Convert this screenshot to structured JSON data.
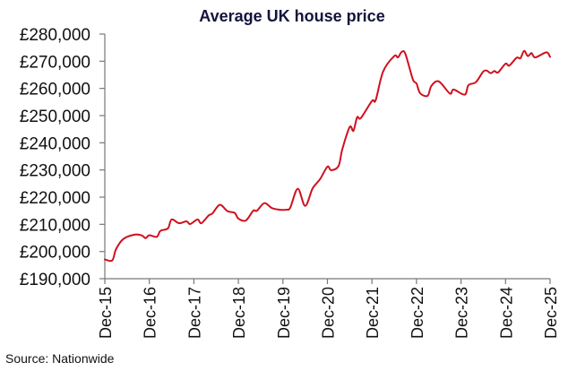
{
  "chart_data": {
    "type": "line",
    "title": "Average UK house price",
    "xlabel": "",
    "ylabel": "",
    "ylim": [
      190000,
      280000
    ],
    "y_ticks": [
      "£190,000",
      "£200,000",
      "£210,000",
      "£220,000",
      "£230,000",
      "£240,000",
      "£250,000",
      "£260,000",
      "£270,000",
      "£280,000"
    ],
    "y_tick_values": [
      190000,
      200000,
      210000,
      220000,
      230000,
      240000,
      250000,
      260000,
      270000,
      280000
    ],
    "x_ticks": [
      "Dec-15",
      "Dec-16",
      "Dec-17",
      "Dec-18",
      "Dec-19",
      "Dec-20",
      "Dec-21",
      "Dec-22",
      "Dec-23",
      "Dec-24",
      "Dec-25"
    ],
    "x_range": [
      "2015-12",
      "2025-12"
    ],
    "grid": false,
    "line_color": "#d0101e",
    "series": [
      {
        "x": [
          "2015-12",
          "2016-02",
          "2016-03",
          "2016-05",
          "2016-08",
          "2016-10",
          "2016-11",
          "2016-12",
          "2017-02",
          "2017-03",
          "2017-05",
          "2017-06",
          "2017-08",
          "2017-10",
          "2017-11",
          "2018-01",
          "2018-02",
          "2018-04",
          "2018-05",
          "2018-07",
          "2018-09",
          "2018-11",
          "2018-12",
          "2019-02",
          "2019-04",
          "2019-05",
          "2019-07",
          "2019-09",
          "2019-11",
          "2020-01",
          "2020-02",
          "2020-04",
          "2020-06",
          "2020-08",
          "2020-10",
          "2020-12",
          "2021-01",
          "2021-03",
          "2021-04",
          "2021-06",
          "2021-07",
          "2021-08",
          "2021-09",
          "2021-12",
          "2022-01",
          "2022-03",
          "2022-06",
          "2022-07",
          "2022-08",
          "2022-09",
          "2022-11",
          "2022-12",
          "2023-01",
          "2023-03",
          "2023-04",
          "2023-06",
          "2023-09",
          "2023-10",
          "2024-01",
          "2024-02",
          "2024-04",
          "2024-06",
          "2024-07",
          "2024-08",
          "2024-09",
          "2024-10",
          "2024-12",
          "2025-01",
          "2025-03",
          "2025-04",
          "2025-05",
          "2025-06",
          "2025-07",
          "2025-08",
          "2025-11",
          "2025-12"
        ],
        "values": [
          197100,
          196700,
          200800,
          204600,
          206200,
          205900,
          204900,
          206000,
          205400,
          207600,
          208500,
          211800,
          210400,
          211100,
          210100,
          211800,
          210400,
          213300,
          214000,
          217200,
          214900,
          214200,
          212100,
          211400,
          215000,
          215000,
          217800,
          216000,
          215400,
          215400,
          216200,
          223100,
          216800,
          223200,
          226600,
          231200,
          229900,
          231500,
          237600,
          245800,
          244400,
          249400,
          249100,
          255400,
          255700,
          266200,
          271900,
          271400,
          273400,
          272700,
          263400,
          261800,
          258200,
          257300,
          260900,
          262600,
          258100,
          259600,
          257700,
          261200,
          262300,
          266200,
          266500,
          265600,
          266400,
          265900,
          269100,
          268400,
          271300,
          271100,
          273800,
          271900,
          273000,
          271400,
          273300,
          271600
        ]
      }
    ]
  },
  "source": "Source: Nationwide"
}
